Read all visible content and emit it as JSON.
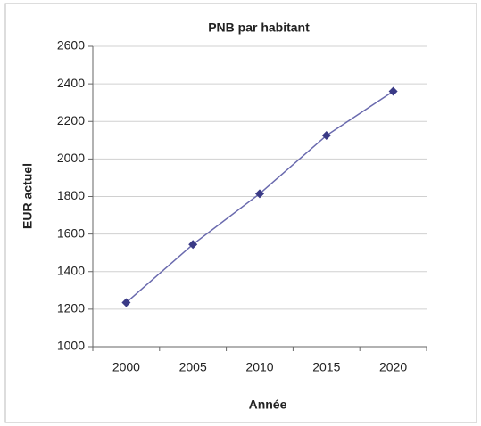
{
  "chart_data": {
    "type": "line",
    "title": "PNB par habitant",
    "x_label": "Année",
    "y_label": "EUR actuel",
    "categories": [
      "2000",
      "2005",
      "2010",
      "2015",
      "2020"
    ],
    "series": [
      {
        "name": "PNB par habitant",
        "color": "#3a3a86",
        "values": [
          1235,
          1545,
          1815,
          2125,
          2360
        ]
      }
    ],
    "ylim": [
      1000,
      2600
    ],
    "yticks": [
      1000,
      1200,
      1400,
      1600,
      1800,
      2000,
      2200,
      2400,
      2600
    ],
    "grid": true,
    "legend": false
  }
}
